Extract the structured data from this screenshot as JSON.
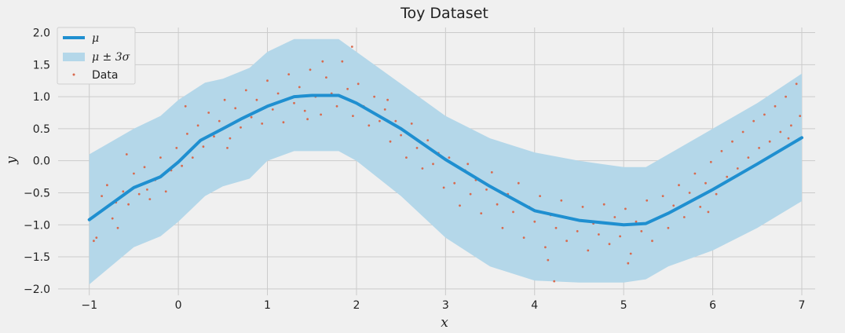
{
  "chart_data": {
    "type": "line",
    "title": "Toy Dataset",
    "xlabel": "x",
    "ylabel": "y",
    "xlim": [
      -1.35,
      7.15
    ],
    "ylim": [
      -2.1,
      2.08
    ],
    "xticks": [
      -1,
      0,
      1,
      2,
      3,
      4,
      5,
      6,
      7
    ],
    "yticks": [
      -2.0,
      -1.5,
      -1.0,
      -0.5,
      0.0,
      0.5,
      1.0,
      1.5,
      2.0
    ],
    "grid": true,
    "legend_position": "top-left",
    "legend": [
      "μ",
      "μ ± 3σ",
      "Data"
    ],
    "colors": {
      "mean": "#1f8fd0",
      "band": "#b4d7e9",
      "data": "#d86a4e",
      "grid": "#cbcbcb",
      "background": "#f0f0f0"
    },
    "series": [
      {
        "name": "μ",
        "kind": "line",
        "x": [
          -1.0,
          -0.8,
          -0.5,
          -0.2,
          0.0,
          0.25,
          0.5,
          0.7,
          1.0,
          1.3,
          1.5,
          1.8,
          2.0,
          2.5,
          3.0,
          3.5,
          4.0,
          4.5,
          5.0,
          5.25,
          5.5,
          6.0,
          6.5,
          7.0
        ],
        "y": [
          -0.92,
          -0.72,
          -0.42,
          -0.25,
          -0.02,
          0.32,
          0.5,
          0.65,
          0.85,
          1.0,
          1.02,
          1.02,
          0.9,
          0.5,
          0.02,
          -0.4,
          -0.78,
          -0.93,
          -1.0,
          -0.98,
          -0.82,
          -0.45,
          -0.05,
          0.36
        ]
      },
      {
        "name": "μ ± 3σ",
        "kind": "band",
        "x": [
          -1.0,
          -0.5,
          -0.2,
          0.0,
          0.3,
          0.5,
          0.8,
          1.0,
          1.3,
          1.8,
          2.0,
          2.5,
          3.0,
          3.5,
          4.0,
          4.5,
          5.0,
          5.25,
          5.5,
          6.0,
          6.5,
          7.0
        ],
        "upper": [
          0.1,
          0.5,
          0.7,
          0.95,
          1.22,
          1.28,
          1.45,
          1.7,
          1.9,
          1.9,
          1.7,
          1.2,
          0.7,
          0.35,
          0.13,
          0.0,
          -0.1,
          -0.1,
          0.1,
          0.5,
          0.9,
          1.36
        ],
        "lower": [
          -1.93,
          -1.35,
          -1.18,
          -0.95,
          -0.55,
          -0.4,
          -0.28,
          0.0,
          0.15,
          0.15,
          0.0,
          -0.55,
          -1.2,
          -1.65,
          -1.87,
          -1.9,
          -1.9,
          -1.85,
          -1.65,
          -1.4,
          -1.05,
          -0.63
        ]
      },
      {
        "name": "Data",
        "kind": "scatter",
        "points": [
          [
            -0.98,
            -0.9
          ],
          [
            -0.92,
            -1.2
          ],
          [
            -0.86,
            -0.55
          ],
          [
            -0.8,
            -0.38
          ],
          [
            -0.74,
            -0.9
          ],
          [
            -0.68,
            -1.05
          ],
          [
            -0.62,
            -0.48
          ],
          [
            -0.56,
            -0.68
          ],
          [
            -0.5,
            -0.2
          ],
          [
            -0.44,
            -0.52
          ],
          [
            -0.38,
            -0.1
          ],
          [
            -0.32,
            -0.6
          ],
          [
            -0.26,
            -0.3
          ],
          [
            -0.2,
            0.05
          ],
          [
            -0.14,
            -0.48
          ],
          [
            -0.08,
            -0.15
          ],
          [
            -0.02,
            0.2
          ],
          [
            0.04,
            -0.08
          ],
          [
            0.1,
            0.42
          ],
          [
            0.16,
            0.05
          ],
          [
            0.22,
            0.55
          ],
          [
            0.28,
            0.22
          ],
          [
            0.34,
            0.75
          ],
          [
            0.4,
            0.38
          ],
          [
            0.46,
            0.62
          ],
          [
            0.52,
            0.95
          ],
          [
            0.58,
            0.35
          ],
          [
            0.64,
            0.82
          ],
          [
            0.7,
            0.52
          ],
          [
            0.76,
            1.1
          ],
          [
            0.82,
            0.68
          ],
          [
            0.88,
            0.95
          ],
          [
            0.94,
            0.58
          ],
          [
            1.0,
            1.25
          ],
          [
            1.06,
            0.8
          ],
          [
            1.12,
            1.05
          ],
          [
            1.18,
            0.6
          ],
          [
            1.24,
            1.35
          ],
          [
            1.3,
            0.9
          ],
          [
            1.36,
            1.15
          ],
          [
            1.42,
            0.78
          ],
          [
            1.48,
            1.42
          ],
          [
            1.54,
            1.0
          ],
          [
            1.6,
            0.72
          ],
          [
            1.66,
            1.3
          ],
          [
            1.72,
            1.05
          ],
          [
            1.78,
            0.85
          ],
          [
            1.84,
            1.55
          ],
          [
            1.9,
            1.12
          ],
          [
            1.96,
            0.7
          ],
          [
            2.02,
            1.2
          ],
          [
            2.08,
            0.85
          ],
          [
            2.14,
            0.55
          ],
          [
            2.2,
            1.0
          ],
          [
            2.26,
            0.62
          ],
          [
            2.32,
            0.8
          ],
          [
            2.38,
            0.3
          ],
          [
            2.44,
            0.62
          ],
          [
            2.5,
            0.4
          ],
          [
            2.56,
            0.05
          ],
          [
            2.62,
            0.58
          ],
          [
            2.68,
            0.2
          ],
          [
            2.74,
            -0.12
          ],
          [
            2.8,
            0.32
          ],
          [
            2.86,
            -0.05
          ],
          [
            2.92,
            0.12
          ],
          [
            2.98,
            -0.42
          ],
          [
            3.04,
            0.05
          ],
          [
            3.1,
            -0.35
          ],
          [
            3.16,
            -0.7
          ],
          [
            3.22,
            -0.15
          ],
          [
            3.28,
            -0.52
          ],
          [
            3.34,
            -0.3
          ],
          [
            3.4,
            -0.82
          ],
          [
            3.46,
            -0.45
          ],
          [
            3.52,
            -0.18
          ],
          [
            3.58,
            -0.68
          ],
          [
            3.64,
            -1.05
          ],
          [
            3.7,
            -0.52
          ],
          [
            3.76,
            -0.8
          ],
          [
            3.82,
            -0.35
          ],
          [
            3.88,
            -1.2
          ],
          [
            3.94,
            -0.72
          ],
          [
            4.0,
            -0.95
          ],
          [
            4.06,
            -0.55
          ],
          [
            4.12,
            -1.35
          ],
          [
            4.18,
            -0.85
          ],
          [
            4.24,
            -1.05
          ],
          [
            4.3,
            -0.62
          ],
          [
            4.36,
            -1.25
          ],
          [
            4.42,
            -0.9
          ],
          [
            4.48,
            -1.1
          ],
          [
            4.54,
            -0.72
          ],
          [
            4.6,
            -1.4
          ],
          [
            4.66,
            -0.98
          ],
          [
            4.72,
            -1.15
          ],
          [
            4.78,
            -0.68
          ],
          [
            4.84,
            -1.3
          ],
          [
            4.9,
            -0.88
          ],
          [
            4.96,
            -1.18
          ],
          [
            5.02,
            -0.75
          ],
          [
            5.08,
            -1.45
          ],
          [
            5.14,
            -0.95
          ],
          [
            5.2,
            -1.1
          ],
          [
            5.26,
            -0.62
          ],
          [
            5.32,
            -1.25
          ],
          [
            5.38,
            -0.9
          ],
          [
            5.44,
            -0.55
          ],
          [
            5.5,
            -1.05
          ],
          [
            5.56,
            -0.7
          ],
          [
            5.62,
            -0.38
          ],
          [
            5.68,
            -0.88
          ],
          [
            5.74,
            -0.5
          ],
          [
            5.8,
            -0.2
          ],
          [
            5.86,
            -0.72
          ],
          [
            5.92,
            -0.35
          ],
          [
            5.98,
            -0.02
          ],
          [
            6.04,
            -0.52
          ],
          [
            6.1,
            0.15
          ],
          [
            6.16,
            -0.25
          ],
          [
            6.22,
            0.3
          ],
          [
            6.28,
            -0.12
          ],
          [
            6.34,
            0.45
          ],
          [
            6.4,
            0.05
          ],
          [
            6.46,
            0.62
          ],
          [
            6.52,
            0.2
          ],
          [
            6.58,
            0.72
          ],
          [
            6.64,
            0.3
          ],
          [
            6.7,
            0.85
          ],
          [
            6.76,
            0.45
          ],
          [
            6.82,
            1.0
          ],
          [
            6.88,
            0.55
          ],
          [
            6.94,
            1.2
          ],
          [
            6.98,
            0.7
          ],
          [
            -0.95,
            -1.25
          ],
          [
            -0.7,
            -0.65
          ],
          [
            -0.35,
            -0.45
          ],
          [
            0.55,
            0.2
          ],
          [
            1.45,
            0.65
          ],
          [
            2.35,
            0.95
          ],
          [
            3.25,
            -0.05
          ],
          [
            4.15,
            -1.55
          ],
          [
            5.05,
            -1.6
          ],
          [
            5.95,
            -0.8
          ],
          [
            6.85,
            0.35
          ],
          [
            1.95,
            1.78
          ],
          [
            1.62,
            1.55
          ],
          [
            4.22,
            -1.88
          ],
          [
            0.08,
            0.85
          ],
          [
            -0.58,
            0.1
          ]
        ]
      }
    ]
  }
}
